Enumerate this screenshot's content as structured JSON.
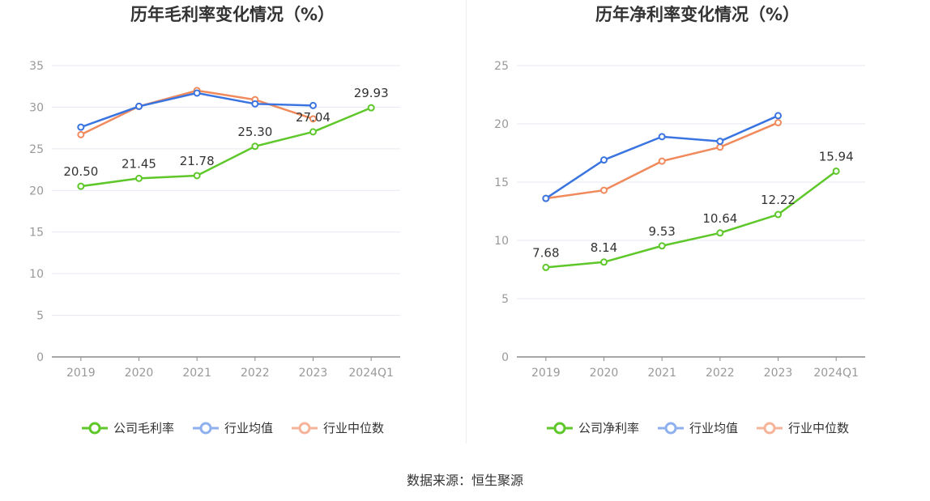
{
  "source": "数据来源：恒生聚源",
  "chart_data": [
    {
      "type": "line",
      "title": "历年毛利率变化情况（%）",
      "categories": [
        "2019",
        "2020",
        "2021",
        "2022",
        "2023",
        "2024Q1"
      ],
      "ylim": [
        0,
        35
      ],
      "yticks": [
        0,
        5,
        10,
        15,
        20,
        25,
        30,
        35
      ],
      "grid": true,
      "legend_position": "bottom",
      "series": [
        {
          "name": "公司毛利率",
          "color": "#5ec72a",
          "values": [
            20.5,
            21.45,
            21.78,
            25.3,
            27.04,
            29.93
          ],
          "labels": [
            "20.50",
            "21.45",
            "21.78",
            "25.30",
            "27.04",
            "29.93"
          ]
        },
        {
          "name": "行业均值",
          "color": "#3a74e0",
          "values": [
            27.6,
            30.1,
            31.7,
            30.4,
            30.2,
            null
          ]
        },
        {
          "name": "行业中位数",
          "color": "#f08a5d",
          "values": [
            26.7,
            30.1,
            32.0,
            30.9,
            28.6,
            null
          ]
        }
      ]
    },
    {
      "type": "line",
      "title": "历年净利率变化情况（%）",
      "categories": [
        "2019",
        "2020",
        "2021",
        "2022",
        "2023",
        "2024Q1"
      ],
      "ylim": [
        0,
        25
      ],
      "yticks": [
        0,
        5,
        10,
        15,
        20,
        25
      ],
      "grid": true,
      "legend_position": "bottom",
      "series": [
        {
          "name": "公司净利率",
          "color": "#5ec72a",
          "values": [
            7.68,
            8.14,
            9.53,
            10.64,
            12.22,
            15.94
          ],
          "labels": [
            "7.68",
            "8.14",
            "9.53",
            "10.64",
            "12.22",
            "15.94"
          ]
        },
        {
          "name": "行业均值",
          "color": "#3a74e0",
          "values": [
            13.6,
            16.9,
            18.9,
            18.5,
            20.7,
            null
          ]
        },
        {
          "name": "行业中位数",
          "color": "#f08a5d",
          "values": [
            13.6,
            14.3,
            16.8,
            18.0,
            20.1,
            null
          ]
        }
      ]
    }
  ]
}
